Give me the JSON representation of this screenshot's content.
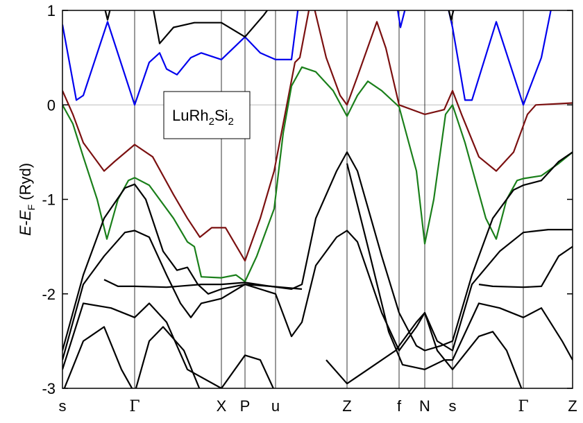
{
  "chart_data": {
    "type": "line",
    "y_label": [
      "E",
      "-",
      "E",
      "F",
      "(Ryd)"
    ],
    "annotation": [
      "LuRh",
      "2",
      "Si",
      "2"
    ],
    "xlim": [
      0,
      735
    ],
    "ylim": [
      -3,
      1
    ],
    "xticks": [
      {
        "value": 0,
        "label": "s"
      },
      {
        "value": 104,
        "label": "Γ"
      },
      {
        "value": 229,
        "label": "X"
      },
      {
        "value": 263,
        "label": "P"
      },
      {
        "value": 307,
        "label": "u"
      },
      {
        "value": 410,
        "label": "Z"
      },
      {
        "value": 485,
        "label": "f"
      },
      {
        "value": 522,
        "label": "N"
      },
      {
        "value": 562,
        "label": "s"
      },
      {
        "value": 664,
        "label": "Γ"
      },
      {
        "value": 735,
        "label": "Z"
      }
    ],
    "yticks": [
      -3,
      -2,
      -1,
      0,
      1
    ],
    "vertical_grid": true,
    "zero_line_color": "#bbbbbb",
    "series": [
      {
        "color": "#0000ee",
        "x": [
          0,
          20,
          30,
          65,
          104,
          125,
          140,
          150,
          165,
          185,
          200,
          229,
          263,
          285,
          307,
          330,
          340,
          400,
          482,
          487,
          495,
          520,
          555,
          562,
          580,
          590,
          625,
          664,
          690,
          705
        ],
        "values": [
          0.85,
          0.05,
          0.1,
          0.88,
          0.0,
          0.45,
          0.55,
          0.38,
          0.32,
          0.5,
          0.55,
          0.48,
          0.72,
          0.55,
          0.48,
          0.48,
          1.05,
          null,
          1.05,
          0.82,
          1.05,
          null,
          1.05,
          0.82,
          0.05,
          0.05,
          0.88,
          0.0,
          0.5,
          1.05
        ]
      },
      {
        "color": "#7b1010",
        "x": [
          0,
          15,
          30,
          60,
          75,
          104,
          130,
          160,
          180,
          198,
          215,
          235,
          263,
          285,
          305,
          335,
          342,
          355,
          362,
          380,
          400,
          410,
          425,
          453,
          466,
          485,
          522,
          550,
          562,
          575,
          600,
          625,
          650,
          670,
          682,
          735
        ],
        "values": [
          0.15,
          -0.1,
          -0.4,
          -0.7,
          -0.6,
          -0.42,
          -0.55,
          -0.95,
          -1.2,
          -1.4,
          -1.3,
          -1.3,
          -1.65,
          -1.2,
          -0.7,
          0.45,
          0.5,
          1.0,
          1.05,
          0.5,
          0.1,
          0.0,
          0.3,
          0.88,
          0.6,
          0.0,
          -0.1,
          -0.05,
          0.15,
          -0.1,
          -0.55,
          -0.7,
          -0.5,
          -0.1,
          0.0,
          0.02
        ]
      },
      {
        "color": "#1a7f1a",
        "x": [
          0,
          15,
          30,
          50,
          64,
          80,
          95,
          104,
          125,
          160,
          180,
          190,
          200,
          229,
          250,
          263,
          280,
          305,
          318,
          330,
          345,
          365,
          390,
          410,
          425,
          440,
          460,
          485,
          510,
          522,
          535,
          552,
          562,
          580,
          610,
          625,
          640,
          655,
          664,
          690,
          715,
          735
        ],
        "values": [
          0.0,
          -0.2,
          -0.55,
          -1.0,
          -1.42,
          -1.0,
          -0.8,
          -0.77,
          -0.85,
          -1.2,
          -1.45,
          -1.5,
          -1.82,
          -1.83,
          -1.8,
          -1.87,
          -1.6,
          -1.1,
          -0.3,
          0.2,
          0.4,
          0.35,
          0.15,
          -0.12,
          0.1,
          0.25,
          0.15,
          -0.02,
          -0.7,
          -1.47,
          -1.0,
          -0.1,
          0.0,
          -0.4,
          -1.2,
          -1.42,
          -1.0,
          -0.8,
          -0.78,
          -0.75,
          -0.62,
          -0.5
        ]
      },
      {
        "color": "#000000",
        "x": [
          0,
          30,
          60,
          90,
          104,
          120,
          145,
          165,
          180,
          195,
          210,
          229,
          263,
          300,
          330,
          345,
          365,
          395,
          410,
          425,
          460,
          485,
          510,
          522,
          545,
          562,
          590,
          620,
          650,
          664,
          690,
          715,
          735
        ],
        "values": [
          -2.6,
          -1.8,
          -1.2,
          -0.88,
          -0.84,
          -1.0,
          -1.55,
          -1.75,
          -1.72,
          -1.9,
          -2.0,
          -1.95,
          -1.9,
          -1.92,
          -1.95,
          -1.9,
          -1.2,
          -0.7,
          -0.5,
          -0.7,
          -1.6,
          -2.2,
          -2.55,
          -2.6,
          -2.55,
          -2.5,
          -1.8,
          -1.2,
          -0.9,
          -0.85,
          -0.8,
          -0.6,
          -0.5
        ]
      },
      {
        "color": "#000000",
        "x": [
          0,
          30,
          60,
          90,
          104,
          125,
          150,
          170,
          185,
          200,
          229,
          263,
          307,
          330,
          345,
          365,
          395,
          410,
          425,
          460,
          485,
          510,
          522,
          540,
          562,
          590,
          630,
          664,
          700,
          735
        ],
        "values": [
          -2.7,
          -1.9,
          -1.6,
          -1.35,
          -1.33,
          -1.4,
          -1.8,
          -2.1,
          -2.25,
          -2.1,
          -2.05,
          -1.9,
          -2.0,
          -2.45,
          -2.3,
          -1.7,
          -1.4,
          -1.33,
          -1.45,
          -2.2,
          -2.6,
          -2.35,
          -2.2,
          -2.5,
          -2.6,
          -1.9,
          -1.55,
          -1.35,
          -1.32,
          -1.32
        ]
      },
      {
        "color": "#000000",
        "x": [
          60,
          80,
          104,
          150,
          200,
          229,
          263,
          300,
          345,
          450,
          600,
          620,
          664,
          690,
          715,
          735
        ],
        "values": [
          -1.85,
          -1.92,
          -1.92,
          -1.93,
          -1.9,
          -1.9,
          -1.88,
          -1.92,
          -1.95,
          null,
          -1.9,
          -1.92,
          -1.93,
          -1.92,
          -1.6,
          -1.5
        ]
      },
      {
        "color": "#000000",
        "x": [
          0,
          30,
          70,
          104,
          125,
          150,
          180,
          229,
          263,
          285,
          307,
          350,
          410,
          440,
          470,
          490,
          522,
          550,
          562,
          600,
          630,
          664,
          690,
          720,
          735
        ],
        "values": [
          -2.8,
          -2.1,
          -2.15,
          -2.25,
          -2.1,
          -2.3,
          -2.8,
          -3.0,
          -2.65,
          -2.7,
          -3.05,
          null,
          -0.62,
          -1.5,
          -2.4,
          -2.75,
          -2.8,
          -2.7,
          -2.7,
          -2.1,
          -2.15,
          -2.25,
          -2.15,
          -2.5,
          -2.7
        ]
      },
      {
        "color": "#000000",
        "x": [
          0,
          30,
          60,
          85,
          104,
          125,
          145,
          175,
          200,
          300,
          380,
          410,
          440,
          480,
          510,
          522,
          540,
          562,
          600,
          620,
          640,
          664
        ],
        "values": [
          -3.05,
          -2.5,
          -2.35,
          -2.8,
          -3.05,
          -2.5,
          -2.35,
          -2.6,
          -3.05,
          null,
          -2.7,
          -2.95,
          -2.8,
          -2.6,
          -2.3,
          -2.2,
          -2.6,
          -2.8,
          -2.45,
          -2.4,
          -2.6,
          -3.05
        ]
      },
      {
        "color": "#000000",
        "x": [
          60,
          65,
          70,
          100,
          130,
          140,
          160,
          190,
          229,
          263,
          290,
          300,
          400,
          555,
          560,
          565
        ],
        "values": [
          1.05,
          0.9,
          1.05,
          null,
          1.05,
          0.65,
          0.82,
          0.87,
          0.87,
          0.72,
          0.95,
          1.05,
          null,
          1.05,
          0.9,
          1.05
        ]
      }
    ]
  }
}
